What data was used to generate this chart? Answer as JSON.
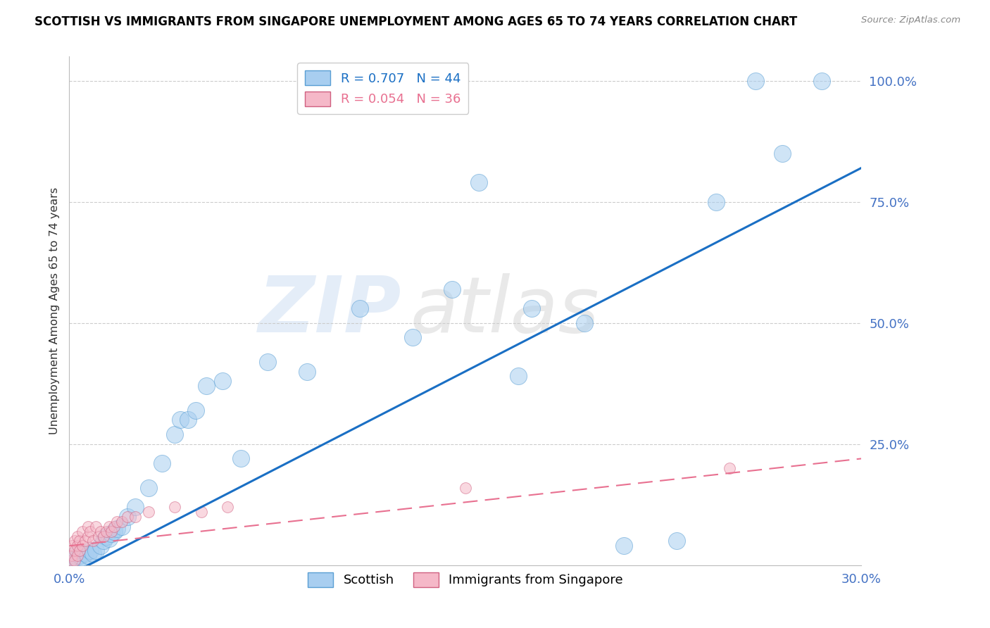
{
  "title": "SCOTTISH VS IMMIGRANTS FROM SINGAPORE UNEMPLOYMENT AMONG AGES 65 TO 74 YEARS CORRELATION CHART",
  "source": "Source: ZipAtlas.com",
  "ylabel": "Unemployment Among Ages 65 to 74 years",
  "xlim": [
    0.0,
    0.3
  ],
  "ylim": [
    0.0,
    1.05
  ],
  "ytick_vals": [
    0.25,
    0.5,
    0.75,
    1.0
  ],
  "ytick_labels": [
    "25.0%",
    "50.0%",
    "75.0%",
    "100.0%"
  ],
  "xtick_vals": [
    0.0,
    0.05,
    0.1,
    0.15,
    0.2,
    0.25,
    0.3
  ],
  "xtick_labels": [
    "0.0%",
    "",
    "",
    "",
    "",
    "",
    "30.0%"
  ],
  "scottish_color": "#a8cef0",
  "singapore_color": "#f5b8c8",
  "trendline_scottish_color": "#1a6fc4",
  "trendline_singapore_color": "#e87090",
  "watermark_zip": "ZIP",
  "watermark_atlas": "atlas",
  "legend_R_scottish": "R = 0.707",
  "legend_N_scottish": "N = 44",
  "legend_R_singapore": "R = 0.054",
  "legend_N_singapore": "N = 36",
  "scottish_x": [
    0.001,
    0.002,
    0.003,
    0.004,
    0.005,
    0.006,
    0.007,
    0.008,
    0.009,
    0.01,
    0.012,
    0.013,
    0.014,
    0.015,
    0.016,
    0.017,
    0.018,
    0.02,
    0.022,
    0.025,
    0.03,
    0.035,
    0.04,
    0.042,
    0.045,
    0.048,
    0.052,
    0.058,
    0.065,
    0.075,
    0.09,
    0.11,
    0.13,
    0.145,
    0.155,
    0.17,
    0.175,
    0.195,
    0.21,
    0.23,
    0.245,
    0.26,
    0.27,
    0.285
  ],
  "scottish_y": [
    0.01,
    0.02,
    0.01,
    0.02,
    0.015,
    0.025,
    0.02,
    0.03,
    0.025,
    0.03,
    0.04,
    0.05,
    0.06,
    0.055,
    0.065,
    0.07,
    0.075,
    0.08,
    0.1,
    0.12,
    0.16,
    0.21,
    0.27,
    0.3,
    0.3,
    0.32,
    0.37,
    0.38,
    0.22,
    0.42,
    0.4,
    0.53,
    0.47,
    0.57,
    0.79,
    0.39,
    0.53,
    0.5,
    0.04,
    0.05,
    0.75,
    1.0,
    0.85,
    1.0
  ],
  "singapore_x": [
    0.001,
    0.001,
    0.001,
    0.002,
    0.002,
    0.002,
    0.003,
    0.003,
    0.003,
    0.004,
    0.004,
    0.005,
    0.005,
    0.006,
    0.007,
    0.007,
    0.008,
    0.009,
    0.01,
    0.011,
    0.012,
    0.013,
    0.014,
    0.015,
    0.016,
    0.017,
    0.018,
    0.02,
    0.022,
    0.025,
    0.03,
    0.04,
    0.05,
    0.06,
    0.15,
    0.25
  ],
  "singapore_y": [
    0.01,
    0.02,
    0.04,
    0.01,
    0.03,
    0.05,
    0.02,
    0.04,
    0.06,
    0.03,
    0.05,
    0.04,
    0.07,
    0.05,
    0.06,
    0.08,
    0.07,
    0.05,
    0.08,
    0.06,
    0.07,
    0.06,
    0.07,
    0.08,
    0.07,
    0.08,
    0.09,
    0.09,
    0.1,
    0.1,
    0.11,
    0.12,
    0.11,
    0.12,
    0.16,
    0.2
  ],
  "trendline_scottish_x0": 0.0,
  "trendline_scottish_y0": -0.02,
  "trendline_scottish_x1": 0.3,
  "trendline_scottish_y1": 0.82,
  "trendline_singapore_x0": 0.0,
  "trendline_singapore_y0": 0.04,
  "trendline_singapore_x1": 0.3,
  "trendline_singapore_y1": 0.22
}
